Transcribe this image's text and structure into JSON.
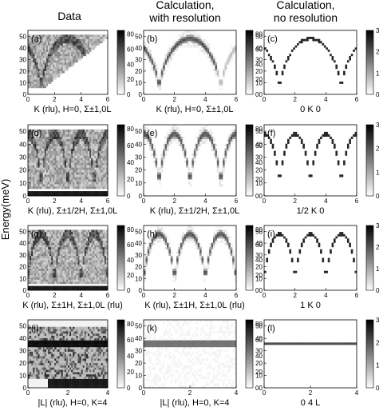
{
  "column_titles": [
    [
      "Data"
    ],
    [
      "Calculation,",
      "with resolution"
    ],
    [
      "Calculation,",
      "no resolution"
    ]
  ],
  "ylabel": "Energy(meV)",
  "colorbar_ticks_counts": [
    "0",
    "20",
    "40",
    "60",
    "80"
  ],
  "colorbar_ticks_calc": [
    "0",
    "1",
    "2",
    "3"
  ],
  "chart_data": [
    {
      "type": "heatmap",
      "panel": "(a)",
      "xlabel": "K (rlu), H=0, Σ±1,0L",
      "xlim": [
        0,
        6
      ],
      "ylim": [
        0,
        55
      ],
      "xticks": [
        "0",
        "2",
        "4",
        "6"
      ],
      "yticks": [
        "0",
        "10",
        "20",
        "30",
        "40",
        "50"
      ],
      "colorbar": "0 20 40 60 80",
      "crange": [
        0,
        85
      ]
    },
    {
      "type": "heatmap",
      "panel": "(b)",
      "xlabel": "K (rlu), H=0, Σ±1,0L",
      "xlim": [
        0,
        6
      ],
      "ylim": [
        0,
        55
      ],
      "xticks": [
        "0",
        "2",
        "4",
        "6"
      ],
      "yticks": [
        "0",
        "10",
        "20",
        "30",
        "40",
        "50"
      ],
      "colorbar": "0 20 40 60 80",
      "crange": [
        0,
        85
      ]
    },
    {
      "type": "heatmap",
      "panel": "(c)",
      "xlabel": "0 K 0",
      "xlim": [
        0,
        6
      ],
      "ylim": [
        0,
        55
      ],
      "xticks": [
        "0",
        "2",
        "4",
        "6"
      ],
      "yticks": [
        "0",
        "10",
        "20",
        "30",
        "40",
        "50"
      ],
      "colorbar": "0 1 2 3",
      "crange": [
        0,
        3
      ]
    },
    {
      "type": "heatmap",
      "panel": "(d)",
      "xlabel": "K (rlu), Σ±1/2H, Σ±1,0L",
      "xlim": [
        0,
        6
      ],
      "ylim": [
        0,
        55
      ],
      "xticks": [
        "0",
        "2",
        "4",
        "6"
      ],
      "yticks": [
        "0",
        "10",
        "20",
        "30",
        "40",
        "50"
      ],
      "colorbar": "0 20 40 60 80",
      "crange": [
        0,
        85
      ]
    },
    {
      "type": "heatmap",
      "panel": "(e)",
      "xlabel": "K (rlu), Σ±1/2H, Σ±1,0L",
      "xlim": [
        0,
        6
      ],
      "ylim": [
        0,
        55
      ],
      "xticks": [
        "0",
        "2",
        "4",
        "6"
      ],
      "yticks": [
        "0",
        "10",
        "20",
        "30",
        "40",
        "50"
      ],
      "colorbar": "0 20 40 60 80",
      "crange": [
        0,
        85
      ]
    },
    {
      "type": "heatmap",
      "panel": "(f)",
      "xlabel": "1/2 K 0",
      "xlim": [
        0,
        6
      ],
      "ylim": [
        0,
        55
      ],
      "xticks": [
        "0",
        "2",
        "4",
        "6"
      ],
      "yticks": [
        "0",
        "10",
        "20",
        "30",
        "40",
        "50"
      ],
      "colorbar": "0 1 2 3",
      "crange": [
        0,
        3
      ]
    },
    {
      "type": "heatmap",
      "panel": "(g)",
      "xlabel": "K (rlu), Σ±1H, Σ±1,0L (rlu)",
      "xlim": [
        0,
        6
      ],
      "ylim": [
        0,
        55
      ],
      "xticks": [
        "0",
        "2",
        "4",
        "6"
      ],
      "yticks": [
        "0",
        "10",
        "20",
        "30",
        "40",
        "50"
      ],
      "colorbar": "0 20 40 60 80",
      "crange": [
        0,
        85
      ]
    },
    {
      "type": "heatmap",
      "panel": "(h)",
      "xlabel": "K (rlu), Σ±1H, Σ±1,0L (rlu)",
      "xlim": [
        0,
        6
      ],
      "ylim": [
        0,
        55
      ],
      "xticks": [
        "0",
        "2",
        "4",
        "6"
      ],
      "yticks": [
        "0",
        "10",
        "20",
        "30",
        "40",
        "50"
      ],
      "colorbar": "0 20 40 60 80",
      "crange": [
        0,
        85
      ]
    },
    {
      "type": "heatmap",
      "panel": "(i)",
      "xlabel": "1 K 0",
      "xlim": [
        0,
        6
      ],
      "ylim": [
        0,
        55
      ],
      "xticks": [
        "0",
        "2",
        "4",
        "6"
      ],
      "yticks": [
        "0",
        "10",
        "20",
        "30",
        "40",
        "50"
      ],
      "colorbar": "0 1 2 3",
      "crange": [
        0,
        3
      ]
    },
    {
      "type": "heatmap",
      "panel": "(j)",
      "xlabel": "|L| (rlu), H=0, K=4",
      "xlim": [
        0,
        4
      ],
      "ylim": [
        0,
        55
      ],
      "xticks": [
        "0",
        "2",
        "4"
      ],
      "yticks": [
        "0",
        "10",
        "20",
        "30",
        "40",
        "50"
      ],
      "colorbar": "0 20 40 60 80",
      "crange": [
        0,
        85
      ]
    },
    {
      "type": "heatmap",
      "panel": "(k)",
      "xlabel": "|L| (rlu), H=0, K=4",
      "xlim": [
        0,
        4
      ],
      "ylim": [
        0,
        55
      ],
      "xticks": [
        "0",
        "2",
        "4"
      ],
      "yticks": [
        "0",
        "10",
        "20",
        "30",
        "40",
        "50"
      ],
      "colorbar": "0 20 40 60 80",
      "crange": [
        0,
        85
      ]
    },
    {
      "type": "heatmap",
      "panel": "(l)",
      "xlabel": "0 4 L",
      "xlim": [
        0,
        4
      ],
      "ylim": [
        0,
        55
      ],
      "xticks": [
        "0",
        "2",
        "4"
      ],
      "yticks": [
        "0",
        "10",
        "20",
        "30",
        "40",
        "50"
      ],
      "colorbar": "0 1 2 3",
      "crange": [
        0,
        3
      ]
    }
  ]
}
